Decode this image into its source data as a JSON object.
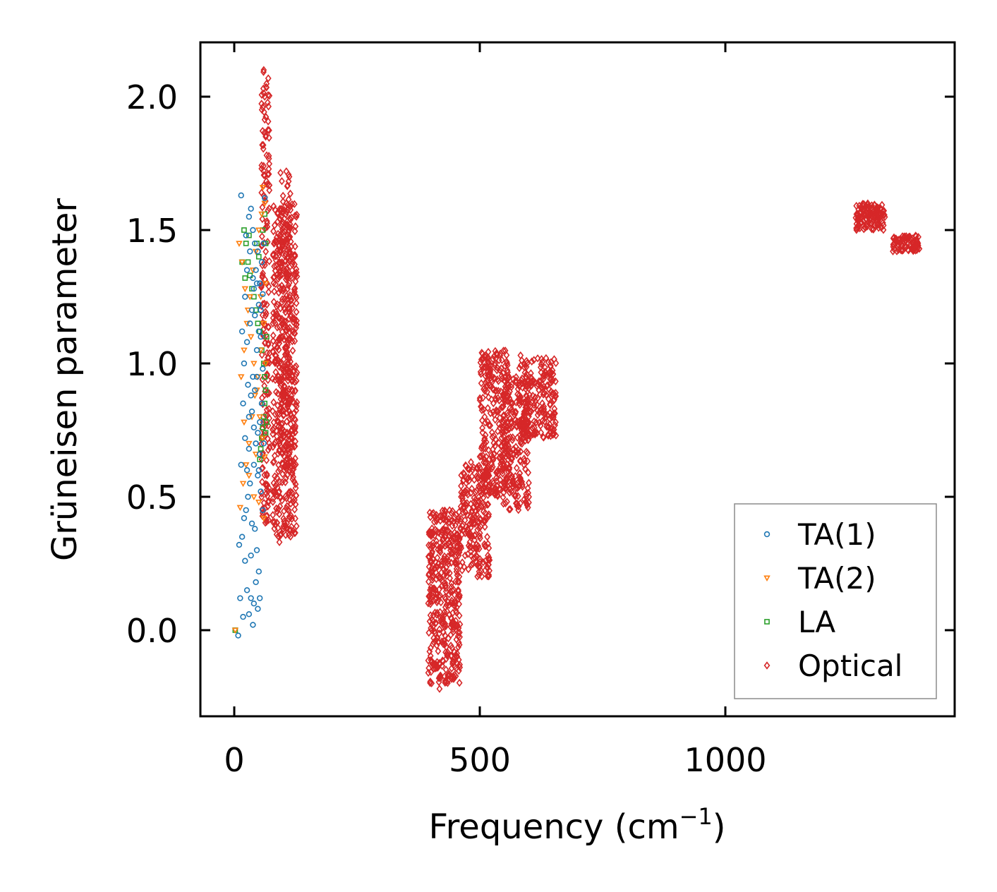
{
  "chart_data": {
    "type": "scatter",
    "title": "",
    "xlabel": "Frequency (cm",
    "xlabel_sup": "−1",
    "xlabel_end": ")",
    "ylabel": "Grüneisen parameter",
    "xlim": [
      -70,
      1470
    ],
    "ylim": [
      -0.32,
      2.2
    ],
    "xticks": [
      0,
      500,
      1000
    ],
    "xtick_labels": [
      "0",
      "500",
      "1000"
    ],
    "yticks": [
      0.0,
      0.5,
      1.0,
      1.5,
      2.0
    ],
    "ytick_labels": [
      "0.0",
      "0.5",
      "1.0",
      "1.5",
      "2.0"
    ],
    "grid": false,
    "legend_position": "lower-right",
    "series": [
      {
        "name": "TA(1)",
        "marker": "circle",
        "color": "#1f77b4",
        "points": [
          [
            8,
            -0.02
          ],
          [
            12,
            0.12
          ],
          [
            18,
            0.05
          ],
          [
            22,
            0.26
          ],
          [
            26,
            0.15
          ],
          [
            30,
            0.06
          ],
          [
            34,
            0.12
          ],
          [
            38,
            0.02
          ],
          [
            40,
            0.1
          ],
          [
            44,
            0.18
          ],
          [
            48,
            0.08
          ],
          [
            50,
            0.22
          ],
          [
            52,
            0.12
          ],
          [
            10,
            0.32
          ],
          [
            16,
            0.35
          ],
          [
            20,
            0.42
          ],
          [
            24,
            0.45
          ],
          [
            28,
            0.5
          ],
          [
            32,
            0.55
          ],
          [
            36,
            0.4
          ],
          [
            40,
            0.62
          ],
          [
            44,
            0.7
          ],
          [
            48,
            0.58
          ],
          [
            52,
            0.66
          ],
          [
            14,
            0.62
          ],
          [
            22,
            0.72
          ],
          [
            30,
            0.8
          ],
          [
            34,
            0.88
          ],
          [
            38,
            0.95
          ],
          [
            42,
            0.9
          ],
          [
            46,
            1.05
          ],
          [
            50,
            1.12
          ],
          [
            54,
            1.2
          ],
          [
            58,
            1.26
          ],
          [
            20,
            1.0
          ],
          [
            26,
            1.08
          ],
          [
            32,
            1.15
          ],
          [
            36,
            1.2
          ],
          [
            40,
            1.28
          ],
          [
            44,
            1.35
          ],
          [
            48,
            1.42
          ],
          [
            52,
            1.3
          ],
          [
            56,
            1.38
          ],
          [
            24,
            1.48
          ],
          [
            30,
            1.55
          ],
          [
            34,
            1.58
          ],
          [
            38,
            1.5
          ],
          [
            42,
            1.45
          ],
          [
            14,
            1.63
          ],
          [
            46,
            1.3
          ],
          [
            50,
            1.22
          ],
          [
            54,
            1.1
          ],
          [
            58,
            0.98
          ],
          [
            56,
            0.85
          ],
          [
            52,
            0.78
          ],
          [
            48,
            0.74
          ],
          [
            44,
            0.7
          ],
          [
            40,
            0.76
          ],
          [
            36,
            0.82
          ],
          [
            28,
            0.92
          ],
          [
            18,
            0.85
          ],
          [
            16,
            1.12
          ],
          [
            22,
            1.25
          ],
          [
            26,
            1.35
          ],
          [
            32,
            1.42
          ],
          [
            38,
            1.32
          ],
          [
            42,
            1.18
          ],
          [
            46,
            0.95
          ],
          [
            50,
            0.6
          ],
          [
            54,
            0.52
          ],
          [
            58,
            0.45
          ],
          [
            60,
            1.45
          ],
          [
            60,
            0.7
          ],
          [
            34,
            0.28
          ],
          [
            42,
            0.38
          ],
          [
            46,
            0.3
          ],
          [
            30,
            0.68
          ],
          [
            26,
            0.6
          ],
          [
            62,
            1.62
          ]
        ]
      },
      {
        "name": "TA(2)",
        "marker": "triangle-down",
        "color": "#ff7f0e",
        "points": [
          [
            2,
            0.0
          ],
          [
            12,
            0.46
          ],
          [
            18,
            0.55
          ],
          [
            24,
            0.62
          ],
          [
            30,
            0.7
          ],
          [
            36,
            0.8
          ],
          [
            42,
            0.88
          ],
          [
            48,
            0.95
          ],
          [
            54,
            1.05
          ],
          [
            60,
            1.15
          ],
          [
            14,
            0.95
          ],
          [
            20,
            1.05
          ],
          [
            26,
            1.15
          ],
          [
            32,
            1.25
          ],
          [
            38,
            1.35
          ],
          [
            44,
            1.42
          ],
          [
            50,
            1.5
          ],
          [
            56,
            1.56
          ],
          [
            10,
            1.45
          ],
          [
            16,
            1.38
          ],
          [
            22,
            1.28
          ],
          [
            28,
            1.2
          ],
          [
            34,
            1.1
          ],
          [
            40,
            1.0
          ],
          [
            46,
            0.9
          ],
          [
            52,
            0.8
          ],
          [
            58,
            0.72
          ],
          [
            62,
            0.65
          ],
          [
            20,
            0.78
          ],
          [
            30,
            0.58
          ],
          [
            40,
            0.5
          ],
          [
            50,
            0.48
          ],
          [
            60,
            0.42
          ],
          [
            64,
            1.3
          ],
          [
            64,
            1.0
          ],
          [
            62,
            1.6
          ],
          [
            58,
            1.66
          ],
          [
            54,
            1.25
          ],
          [
            44,
            0.66
          ]
        ]
      },
      {
        "name": "LA",
        "marker": "square",
        "color": "#2ca02c",
        "points": [
          [
            2,
            0.0
          ],
          [
            20,
            1.5
          ],
          [
            24,
            1.45
          ],
          [
            28,
            1.38
          ],
          [
            32,
            1.33
          ],
          [
            36,
            1.28
          ],
          [
            40,
            1.25
          ],
          [
            44,
            1.2
          ],
          [
            48,
            1.15
          ],
          [
            52,
            1.12
          ],
          [
            56,
            1.05
          ],
          [
            60,
            1.0
          ],
          [
            62,
            0.95
          ],
          [
            64,
            0.9
          ],
          [
            62,
            0.85
          ],
          [
            60,
            0.8
          ],
          [
            58,
            0.76
          ],
          [
            56,
            0.72
          ],
          [
            54,
            0.68
          ],
          [
            52,
            0.64
          ],
          [
            16,
            1.38
          ],
          [
            22,
            1.32
          ],
          [
            46,
            1.45
          ],
          [
            50,
            1.4
          ],
          [
            58,
            1.5
          ],
          [
            62,
            1.56
          ],
          [
            64,
            1.45
          ],
          [
            66,
            1.1
          ],
          [
            66,
            0.78
          ],
          [
            64,
            0.74
          ],
          [
            30,
            1.48
          ]
        ]
      },
      {
        "name": "Optical",
        "marker": "diamond",
        "color": "#d62728",
        "clusters": [
          {
            "x": [
              78,
              128
            ],
            "y": [
              0.35,
              1.6
            ],
            "count": 520
          },
          {
            "x": [
              55,
              72
            ],
            "y": [
              0.4,
              2.1
            ],
            "count": 180
          },
          {
            "x": [
              90,
              115
            ],
            "y": [
              0.6,
              1.72
            ],
            "count": 120
          },
          {
            "x": [
              395,
              460
            ],
            "y": [
              -0.2,
              0.45
            ],
            "count": 420
          },
          {
            "x": [
              460,
              520
            ],
            "y": [
              0.2,
              0.62
            ],
            "count": 220
          },
          {
            "x": [
              500,
              560
            ],
            "y": [
              0.5,
              1.05
            ],
            "count": 260
          },
          {
            "x": [
              545,
              600
            ],
            "y": [
              0.45,
              0.95
            ],
            "count": 220
          },
          {
            "x": [
              580,
              655
            ],
            "y": [
              0.72,
              1.02
            ],
            "count": 220
          },
          {
            "x": [
              1265,
              1325
            ],
            "y": [
              1.5,
              1.6
            ],
            "count": 120
          },
          {
            "x": [
              1340,
              1395
            ],
            "y": [
              1.42,
              1.48
            ],
            "count": 80
          }
        ],
        "points": [
          [
            60,
            2.1
          ],
          [
            62,
            2.0
          ],
          [
            58,
            1.96
          ],
          [
            64,
            1.85
          ],
          [
            66,
            1.78
          ],
          [
            106,
            1.72
          ],
          [
            92,
            0.33
          ],
          [
            100,
            0.38
          ],
          [
            118,
            0.6
          ],
          [
            120,
            0.62
          ],
          [
            112,
            1.7
          ],
          [
            418,
            -0.22
          ],
          [
            420,
            -0.18
          ],
          [
            452,
            0.28
          ],
          [
            470,
            0.28
          ],
          [
            482,
            0.63
          ],
          [
            504,
            1.04
          ],
          [
            515,
            1.02
          ],
          [
            548,
            0.88
          ],
          [
            583,
            1.03
          ],
          [
            590,
            1.0
          ],
          [
            600,
            0.5
          ],
          [
            598,
            0.46
          ],
          [
            655,
            0.73
          ],
          [
            1290,
            1.6
          ],
          [
            1300,
            1.58
          ],
          [
            1310,
            1.55
          ],
          [
            1395,
            1.43
          ]
        ]
      }
    ]
  }
}
